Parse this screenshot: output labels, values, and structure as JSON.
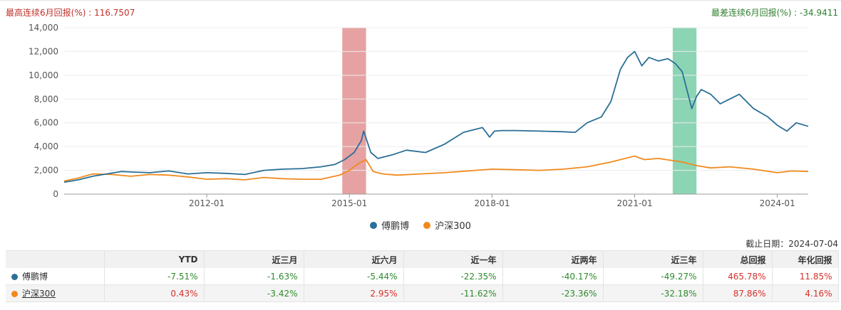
{
  "header": {
    "best_label": "最高连续6月回报(%) : 116.7507",
    "worst_label": "最差连续6月回报(%) : -34.9411"
  },
  "colors": {
    "fund": "#2a6f97",
    "index": "#f08a1e",
    "best_band": "#d87070",
    "worst_band": "#4fbf8c",
    "positive": "#d6302a",
    "negative": "#2e8b2e"
  },
  "chart_data": {
    "type": "line",
    "title": "",
    "xlabel": "",
    "ylabel": "",
    "ylim": [
      0,
      14000
    ],
    "yticks": [
      "0",
      "2,000",
      "4,000",
      "6,000",
      "8,000",
      "10,000",
      "12,000",
      "14,000"
    ],
    "xlim": [
      2009.0,
      2024.65
    ],
    "xticks": [
      {
        "label": "2012-01",
        "x": 2012.0
      },
      {
        "label": "2015-01",
        "x": 2015.0
      },
      {
        "label": "2018-01",
        "x": 2018.0
      },
      {
        "label": "2021-01",
        "x": 2021.0
      },
      {
        "label": "2024-01",
        "x": 2024.0
      }
    ],
    "bands": [
      {
        "name": "best_6m",
        "x0": 2014.85,
        "x1": 2015.35
      },
      {
        "name": "worst_6m",
        "x0": 2021.8,
        "x1": 2022.3
      }
    ],
    "legend_position": "bottom-center",
    "series": [
      {
        "name": "傅鹏博",
        "x": [
          2009.0,
          2009.3,
          2009.6,
          2009.9,
          2010.2,
          2010.5,
          2010.8,
          2011.2,
          2011.6,
          2012.0,
          2012.4,
          2012.8,
          2013.2,
          2013.6,
          2014.0,
          2014.4,
          2014.7,
          2014.9,
          2015.1,
          2015.25,
          2015.3,
          2015.45,
          2015.6,
          2015.9,
          2016.2,
          2016.6,
          2017.0,
          2017.4,
          2017.8,
          2017.95,
          2018.05,
          2018.2,
          2018.5,
          2019.0,
          2019.5,
          2019.75,
          2020.0,
          2020.3,
          2020.5,
          2020.7,
          2020.85,
          2021.0,
          2021.15,
          2021.3,
          2021.5,
          2021.7,
          2021.85,
          2022.0,
          2022.2,
          2022.3,
          2022.4,
          2022.6,
          2022.8,
          2023.0,
          2023.2,
          2023.5,
          2023.8,
          2024.0,
          2024.2,
          2024.4,
          2024.65
        ],
        "values": [
          1000,
          1200,
          1500,
          1700,
          1900,
          1850,
          1800,
          1950,
          1700,
          1800,
          1750,
          1650,
          2000,
          2100,
          2150,
          2300,
          2500,
          2900,
          3500,
          4500,
          5300,
          3500,
          3000,
          3300,
          3700,
          3500,
          4200,
          5200,
          5600,
          4800,
          5300,
          5350,
          5350,
          5300,
          5250,
          5200,
          6000,
          6500,
          7800,
          10500,
          11500,
          12000,
          10800,
          11500,
          11200,
          11400,
          11000,
          10300,
          7200,
          8200,
          8800,
          8400,
          7600,
          8000,
          8400,
          7200,
          6500,
          5800,
          5300,
          6000,
          5700
        ]
      },
      {
        "name": "沪深300",
        "x": [
          2009.0,
          2009.3,
          2009.6,
          2010.0,
          2010.4,
          2010.8,
          2011.2,
          2011.6,
          2012.0,
          2012.4,
          2012.8,
          2013.2,
          2013.6,
          2014.0,
          2014.4,
          2014.8,
          2015.0,
          2015.2,
          2015.35,
          2015.5,
          2015.7,
          2016.0,
          2016.5,
          2017.0,
          2017.5,
          2018.0,
          2018.5,
          2019.0,
          2019.5,
          2020.0,
          2020.5,
          2021.0,
          2021.2,
          2021.5,
          2022.0,
          2022.3,
          2022.6,
          2023.0,
          2023.5,
          2024.0,
          2024.3,
          2024.65
        ],
        "values": [
          1100,
          1350,
          1700,
          1650,
          1500,
          1650,
          1600,
          1450,
          1250,
          1300,
          1200,
          1400,
          1300,
          1250,
          1250,
          1600,
          2000,
          2600,
          2900,
          1900,
          1700,
          1600,
          1700,
          1800,
          1950,
          2100,
          2050,
          2000,
          2100,
          2300,
          2700,
          3200,
          2900,
          3000,
          2700,
          2400,
          2200,
          2300,
          2100,
          1800,
          1950,
          1900
        ]
      }
    ]
  },
  "legend": [
    {
      "name": "傅鹏博",
      "color": "#2a6f97"
    },
    {
      "name": "沪深300",
      "color": "#f08a1e"
    }
  ],
  "as_of": "截止日期：2024-07-04",
  "table": {
    "headers": [
      "",
      "YTD",
      "近三月",
      "近六月",
      "近一年",
      "近两年",
      "近三年",
      "总回报",
      "年化回报"
    ],
    "rows": [
      {
        "name": "傅鹏博",
        "color": "#2a6f97",
        "cells": [
          "-7.51%",
          "-1.63%",
          "-5.44%",
          "-22.35%",
          "-40.17%",
          "-49.27%",
          "465.78%",
          "11.85%"
        ]
      },
      {
        "name": "沪深300",
        "color": "#f08a1e",
        "cells": [
          "0.43%",
          "-3.42%",
          "2.95%",
          "-11.62%",
          "-23.36%",
          "-32.18%",
          "87.86%",
          "4.16%"
        ]
      }
    ]
  }
}
